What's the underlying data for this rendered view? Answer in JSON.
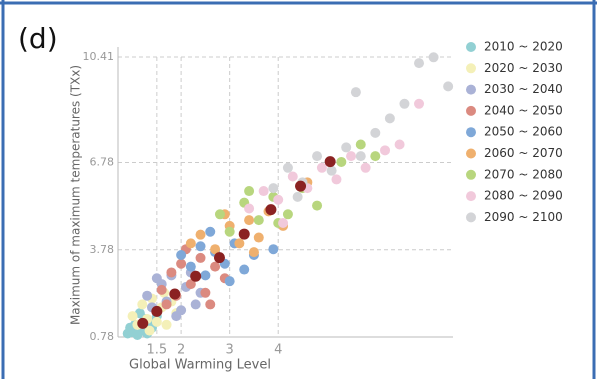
{
  "panel_label": "(d)",
  "chart_data": {
    "type": "scatter",
    "x_label": "Global Warming Level",
    "y_label": "Maximum of maximum temperatures (TXx)",
    "xlim": [
      0.7,
      7.6
    ],
    "ylim": [
      0.78,
      10.41
    ],
    "xticks": [
      1.5,
      2,
      3,
      4
    ],
    "yticks": [
      0.78,
      3.78,
      6.78,
      10.41
    ],
    "grid": true,
    "legend": "right",
    "series": [
      {
        "name": "2010 ~ 2020",
        "color": "#92d0d3",
        "x": [
          0.9,
          1.0,
          1.05,
          1.1,
          1.2,
          1.25,
          1.3,
          1.35,
          1.4,
          1.5,
          1.15,
          0.95
        ],
        "y": [
          0.9,
          0.95,
          1.2,
          0.85,
          1.0,
          1.4,
          0.9,
          1.3,
          1.1,
          1.5,
          1.6,
          1.1
        ]
      },
      {
        "name": "2020 ~ 2030",
        "color": "#f4f0b8",
        "x": [
          1.0,
          1.1,
          1.2,
          1.3,
          1.4,
          1.5,
          1.6,
          1.7,
          1.8,
          1.9,
          1.35,
          1.65
        ],
        "y": [
          1.5,
          1.2,
          1.9,
          1.4,
          2.1,
          1.3,
          1.8,
          1.2,
          2.0,
          1.6,
          1.0,
          2.3
        ]
      },
      {
        "name": "2030 ~ 2040",
        "color": "#aab2d6",
        "x": [
          1.3,
          1.4,
          1.6,
          1.7,
          1.8,
          2.0,
          2.1,
          2.2,
          2.4,
          1.9,
          1.5,
          2.3
        ],
        "y": [
          2.2,
          1.8,
          2.6,
          2.0,
          2.9,
          1.7,
          2.5,
          3.0,
          2.3,
          1.5,
          2.8,
          1.9
        ]
      },
      {
        "name": "2040 ~ 2050",
        "color": "#db8a80",
        "x": [
          1.6,
          1.8,
          1.9,
          2.0,
          2.2,
          2.4,
          2.5,
          2.7,
          2.9,
          2.1,
          2.6,
          1.7
        ],
        "y": [
          2.4,
          3.0,
          2.2,
          3.3,
          2.6,
          3.5,
          2.3,
          3.2,
          2.8,
          3.8,
          1.9,
          1.9
        ]
      },
      {
        "name": "2050 ~ 2060",
        "color": "#7fa8d8",
        "x": [
          2.0,
          2.2,
          2.4,
          2.5,
          2.7,
          2.9,
          3.1,
          3.3,
          3.5,
          2.6,
          3.0,
          3.9
        ],
        "y": [
          3.6,
          3.2,
          3.9,
          2.9,
          3.7,
          3.3,
          4.0,
          3.1,
          3.6,
          4.4,
          2.7,
          3.8
        ]
      },
      {
        "name": "2060 ~ 2070",
        "color": "#efb06e",
        "x": [
          2.2,
          2.4,
          2.7,
          3.0,
          3.2,
          3.4,
          3.6,
          3.8,
          4.1,
          2.9,
          3.5,
          4.6
        ],
        "y": [
          4.0,
          4.3,
          3.8,
          4.6,
          4.0,
          4.8,
          4.2,
          5.1,
          4.6,
          5.0,
          3.7,
          6.1
        ]
      },
      {
        "name": "2070 ~ 2080",
        "color": "#b8d67e",
        "x": [
          2.8,
          3.0,
          3.3,
          3.6,
          3.9,
          4.2,
          4.5,
          4.8,
          3.4,
          4.0,
          5.3,
          5.7,
          6.0
        ],
        "y": [
          5.0,
          4.4,
          5.4,
          4.8,
          5.6,
          5.0,
          5.9,
          5.3,
          5.8,
          4.7,
          6.8,
          7.4,
          7.0
        ]
      },
      {
        "name": "2080 ~ 2090",
        "color": "#f1c9db",
        "x": [
          3.4,
          3.7,
          4.0,
          4.3,
          4.6,
          4.9,
          5.2,
          5.5,
          5.8,
          4.1,
          6.2,
          6.5,
          6.9
        ],
        "y": [
          5.2,
          5.8,
          5.5,
          6.3,
          5.9,
          6.6,
          6.2,
          7.0,
          6.6,
          4.7,
          7.2,
          7.4,
          8.8
        ]
      },
      {
        "name": "2090 ~ 2100",
        "color": "#d3d4d7",
        "x": [
          3.9,
          4.2,
          4.5,
          4.8,
          5.1,
          5.4,
          5.7,
          6.0,
          6.3,
          6.6,
          6.9,
          7.2,
          7.5,
          5.6,
          4.4
        ],
        "y": [
          5.9,
          6.6,
          6.1,
          7.0,
          6.5,
          7.3,
          7.0,
          7.8,
          8.3,
          8.8,
          10.2,
          10.4,
          9.4,
          9.2,
          5.6
        ]
      }
    ],
    "means": {
      "color": "#8b2222",
      "x": [
        1.21,
        1.5,
        1.87,
        2.3,
        2.79,
        3.3,
        3.85,
        4.46,
        5.07
      ],
      "y": [
        1.25,
        1.66,
        2.26,
        2.87,
        3.51,
        4.32,
        5.16,
        5.97,
        6.81
      ]
    }
  }
}
